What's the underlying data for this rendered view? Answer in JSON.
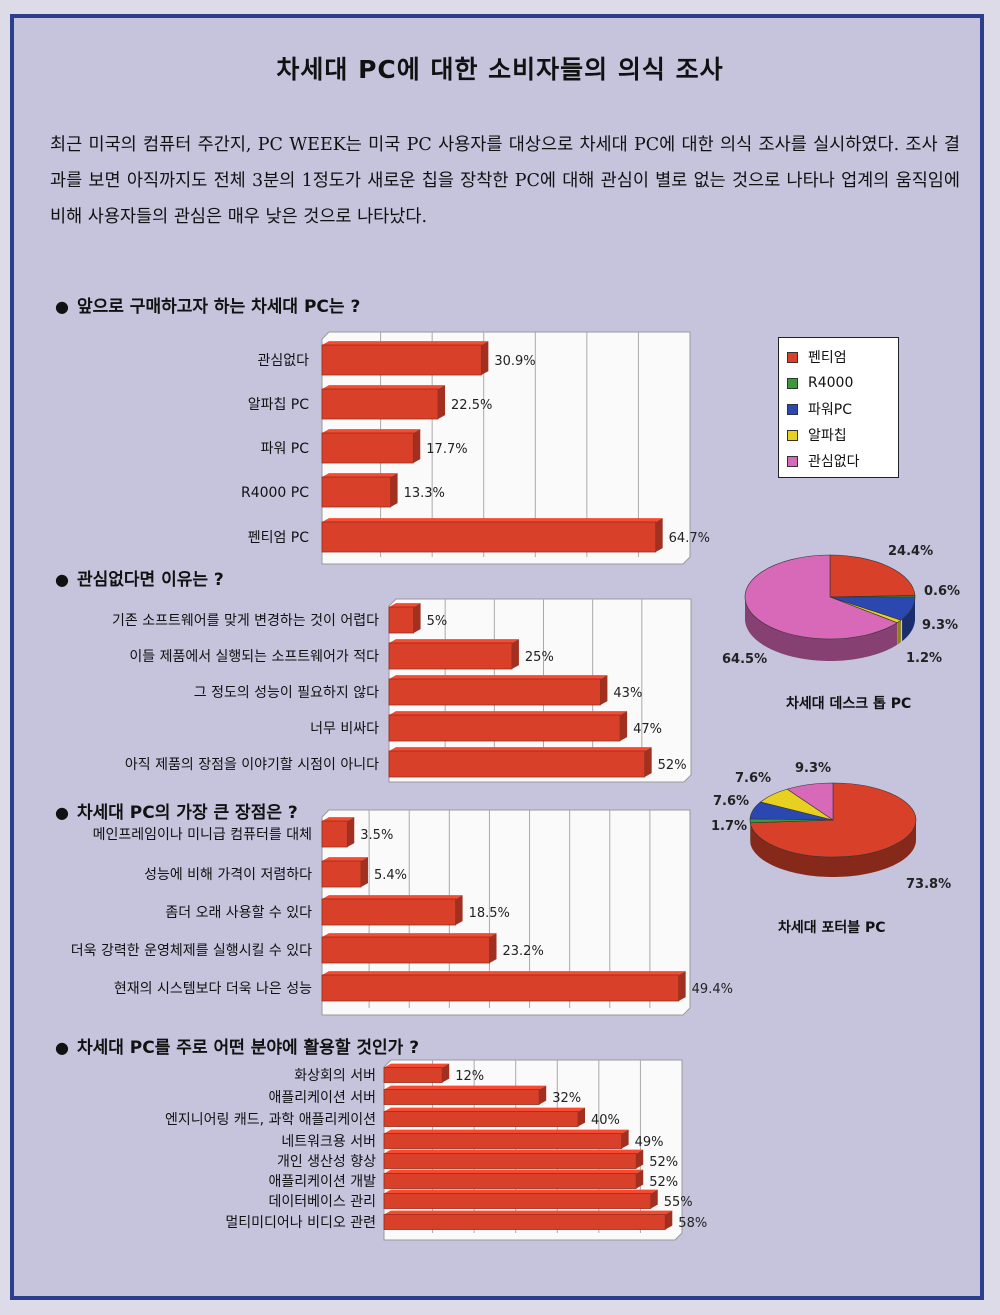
{
  "title": "차세대 PC에 대한 소비자들의 의식 조사",
  "intro": "최근 미국의 컴퓨터 주간지, PC WEEK는 미국 PC 사용자를 대상으로 차세대 PC에 대한 의식 조사를 실시하였다. 조사 결과를 보면 아직까지도 전체 3분의 1정도가 새로운 칩을 장착한 PC에 대해 관심이 별로 없는 것으로 나타나 업계의 움직임에 비해 사용자들의 관심은 매우 낮은 것으로 나타났다.",
  "colors": {
    "bar": "#d8402a",
    "frame": "#2b3e8c",
    "panel": "#c6c4dc"
  },
  "chart_data": [
    {
      "type": "bar",
      "title": "앞으로 구매하고자 하는 차세대 PC는 ?",
      "orientation": "horizontal",
      "categories": [
        "관심없다",
        "알파칩 PC",
        "파워 PC",
        "R4000 PC",
        "펜티엄 PC"
      ],
      "values": [
        30.9,
        22.5,
        17.7,
        13.3,
        64.7
      ],
      "labels": [
        "30.9%",
        "22.5%",
        "17.7%",
        "13.3%",
        "64.7%"
      ],
      "xlim": [
        0,
        70
      ],
      "grid": true
    },
    {
      "type": "bar",
      "title": "관심없다면 이유는 ?",
      "orientation": "horizontal",
      "categories": [
        "기존 소프트웨어를 맞게 변경하는 것이 어렵다",
        "이들 제품에서 실행되는 소프트웨어가 적다",
        "그 정도의 성능이 필요하지 않다",
        "너무 비싸다",
        "아직  제품의 장점을 이야기할 시점이 아니다"
      ],
      "values": [
        5,
        25,
        43,
        47,
        52
      ],
      "labels": [
        "5%",
        "25%",
        "43%",
        "47%",
        "52%"
      ],
      "xlim": [
        0,
        60
      ],
      "grid": true
    },
    {
      "type": "bar",
      "title": "차세대 PC의 가장 큰 장점은 ?",
      "orientation": "horizontal",
      "categories": [
        "메인프레임이나 미니급 컴퓨터를 대체",
        "성능에 비해 가격이 저렴하다",
        "좀더 오래 사용할 수 있다",
        "더욱 강력한 운영체제를 실행시킬 수 있다",
        "현재의 시스템보다 더욱 나은 성능"
      ],
      "values": [
        3.5,
        5.4,
        18.5,
        23.2,
        49.4
      ],
      "labels": [
        "3.5%",
        "5.4%",
        "18.5%",
        "23.2%",
        "49.4%"
      ],
      "xlim": [
        0,
        50
      ],
      "grid": true
    },
    {
      "type": "bar",
      "title": "차세대 PC를 주로 어떤 분야에 활용할 것인가 ?",
      "orientation": "horizontal",
      "categories": [
        "화상회의 서버",
        "애플리케이션 서버",
        "엔지니어링 캐드, 과학 애플리케이션",
        "네트워크용 서버",
        "개인 생산성 향상",
        "애플리케이션 개발",
        "데이터베이스 관리",
        "멀티미디어나 비디오 관련"
      ],
      "values": [
        12,
        32,
        40,
        49,
        52,
        52,
        55,
        58
      ],
      "labels": [
        "12%",
        "32%",
        "40%",
        "49%",
        "52%",
        "52%",
        "55%",
        "58%"
      ],
      "xlim": [
        0,
        60
      ],
      "grid": true
    },
    {
      "type": "pie",
      "title": "차세대 데스크 톱 PC",
      "legend": [
        {
          "name": "펜티엄",
          "color": "#d8402a"
        },
        {
          "name": "R4000",
          "color": "#3a9a3a"
        },
        {
          "name": "파워PC",
          "color": "#2a48b0"
        },
        {
          "name": "알파칩",
          "color": "#e8d020"
        },
        {
          "name": "관심없다",
          "color": "#d868b8"
        }
      ],
      "legend_position": "top-right",
      "slices": [
        {
          "name": "펜티엄",
          "value": 24.4,
          "label": "24.4%"
        },
        {
          "name": "R4000",
          "value": 0.6,
          "label": "0.6%"
        },
        {
          "name": "파워PC",
          "value": 9.3,
          "label": "9.3%"
        },
        {
          "name": "알파칩",
          "value": 1.2,
          "label": "1.2%"
        },
        {
          "name": "관심없다",
          "value": 64.5,
          "label": "64.5%"
        }
      ]
    },
    {
      "type": "pie",
      "title": "차세대 포터블 PC",
      "slices": [
        {
          "name": "펜티엄",
          "value": 73.8,
          "label": "73.8%"
        },
        {
          "name": "R4000",
          "value": 1.7,
          "label": "1.7%"
        },
        {
          "name": "파워PC",
          "value": 7.6,
          "label": "7.6%"
        },
        {
          "name": "알파칩",
          "value": 7.6,
          "label": "7.6%"
        },
        {
          "name": "관심없다",
          "value": 9.3,
          "label": "9.3%"
        }
      ]
    }
  ]
}
